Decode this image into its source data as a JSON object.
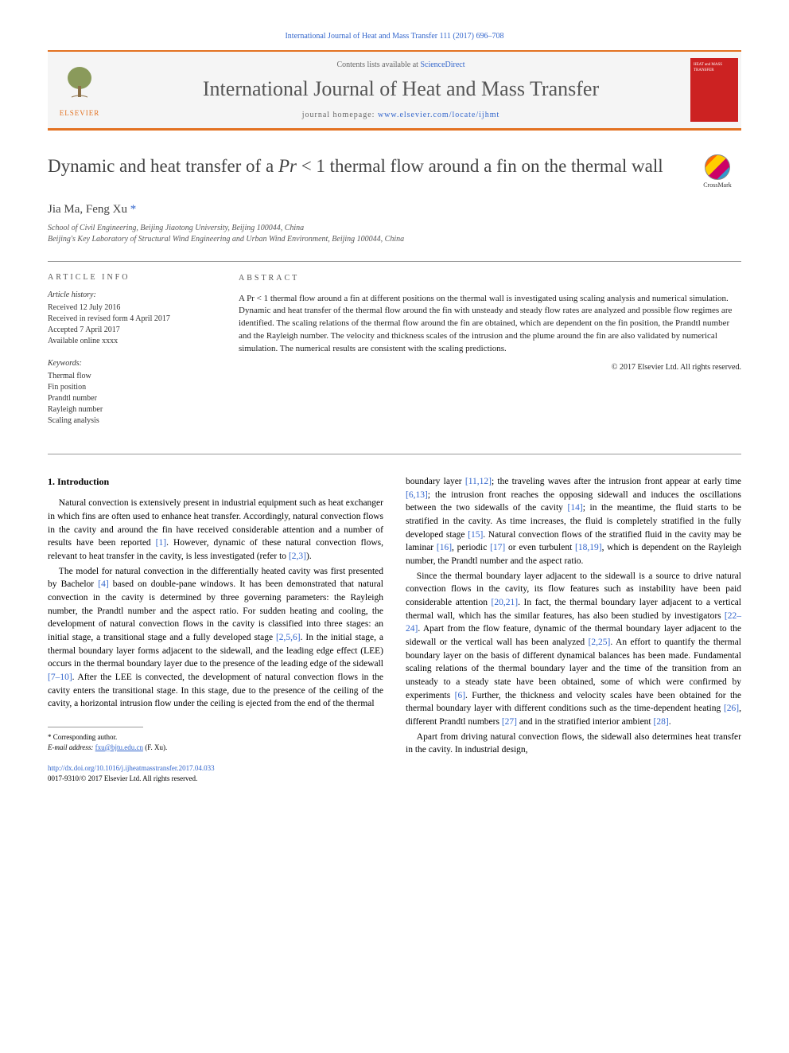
{
  "journal_ref": "International Journal of Heat and Mass Transfer 111 (2017) 696–708",
  "header": {
    "contents_prefix": "Contents lists available at ",
    "contents_link": "ScienceDirect",
    "journal_name": "International Journal of Heat and Mass Transfer",
    "homepage_prefix": "journal homepage: ",
    "homepage_link": "www.elsevier.com/locate/ijhmt",
    "publisher_label": "ELSEVIER",
    "cover_text": "HEAT and MASS TRANSFER"
  },
  "title_pre": "Dynamic and heat transfer of a ",
  "title_var": "Pr",
  "title_post": " < 1 thermal flow around a fin on the thermal wall",
  "crossmark_label": "CrossMark",
  "authors": "Jia Ma, Feng Xu",
  "corr_marker": "*",
  "affiliations": [
    "School of Civil Engineering, Beijing Jiaotong University, Beijing 100044, China",
    "Beijing's Key Laboratory of Structural Wind Engineering and Urban Wind Environment, Beijing 100044, China"
  ],
  "info": {
    "heading": "article info",
    "history_label": "Article history:",
    "history": [
      "Received 12 July 2016",
      "Received in revised form 4 April 2017",
      "Accepted 7 April 2017",
      "Available online xxxx"
    ],
    "keywords_label": "Keywords:",
    "keywords": [
      "Thermal flow",
      "Fin position",
      "Prandtl number",
      "Rayleigh number",
      "Scaling analysis"
    ]
  },
  "abstract": {
    "heading": "abstract",
    "text": "A Pr < 1 thermal flow around a fin at different positions on the thermal wall is investigated using scaling analysis and numerical simulation. Dynamic and heat transfer of the thermal flow around the fin with unsteady and steady flow rates are analyzed and possible flow regimes are identified. The scaling relations of the thermal flow around the fin are obtained, which are dependent on the fin position, the Prandtl number and the Rayleigh number. The velocity and thickness scales of the intrusion and the plume around the fin are also validated by numerical simulation. The numerical results are consistent with the scaling predictions.",
    "copyright": "© 2017 Elsevier Ltd. All rights reserved."
  },
  "body": {
    "sec_heading": "1. Introduction",
    "col1": [
      "Natural convection is extensively present in industrial equipment such as heat exchanger in which fins are often used to enhance heat transfer. Accordingly, natural convection flows in the cavity and around the fin have received considerable attention and a number of results have been reported [1]. However, dynamic of these natural convection flows, relevant to heat transfer in the cavity, is less investigated (refer to [2,3]).",
      "The model for natural convection in the differentially heated cavity was first presented by Bachelor [4] based on double-pane windows. It has been demonstrated that natural convection in the cavity is determined by three governing parameters: the Rayleigh number, the Prandtl number and the aspect ratio. For sudden heating and cooling, the development of natural convection flows in the cavity is classified into three stages: an initial stage, a transitional stage and a fully developed stage [2,5,6]. In the initial stage, a thermal boundary layer forms adjacent to the sidewall, and the leading edge effect (LEE) occurs in the thermal boundary layer due to the presence of the leading edge of the sidewall [7–10]. After the LEE is convected, the development of natural convection flows in the cavity enters the transitional stage. In this stage, due to the presence of the ceiling of the cavity, a horizontal intrusion flow under the ceiling is ejected from the end of the thermal"
    ],
    "col2": [
      "boundary layer [11,12]; the traveling waves after the intrusion front appear at early time [6,13]; the intrusion front reaches the opposing sidewall and induces the oscillations between the two sidewalls of the cavity [14]; in the meantime, the fluid starts to be stratified in the cavity. As time increases, the fluid is completely stratified in the fully developed stage [15]. Natural convection flows of the stratified fluid in the cavity may be laminar [16], periodic [17] or even turbulent [18,19], which is dependent on the Rayleigh number, the Prandtl number and the aspect ratio.",
      "Since the thermal boundary layer adjacent to the sidewall is a source to drive natural convection flows in the cavity, its flow features such as instability have been paid considerable attention [20,21]. In fact, the thermal boundary layer adjacent to a vertical thermal wall, which has the similar features, has also been studied by investigators [22–24]. Apart from the flow feature, dynamic of the thermal boundary layer adjacent to the sidewall or the vertical wall has been analyzed [2,25]. An effort to quantify the thermal boundary layer on the basis of different dynamical balances has been made. Fundamental scaling relations of the thermal boundary layer and the time of the transition from an unsteady to a steady state have been obtained, some of which were confirmed by experiments [6]. Further, the thickness and velocity scales have been obtained for the thermal boundary layer with different conditions such as the time-dependent heating [26], different Prandtl numbers [27] and in the stratified interior ambient [28].",
      "Apart from driving natural convection flows, the sidewall also determines heat transfer in the cavity. In industrial design,"
    ]
  },
  "footnote": {
    "corr_label": "* Corresponding author.",
    "email_label": "E-mail address: ",
    "email": "fxu@bjtu.edu.cn",
    "email_suffix": " (F. Xu)."
  },
  "doi": {
    "link": "http://dx.doi.org/10.1016/j.ijheatmasstransfer.2017.04.033",
    "issn_line": "0017-9310/© 2017 Elsevier Ltd. All rights reserved."
  }
}
